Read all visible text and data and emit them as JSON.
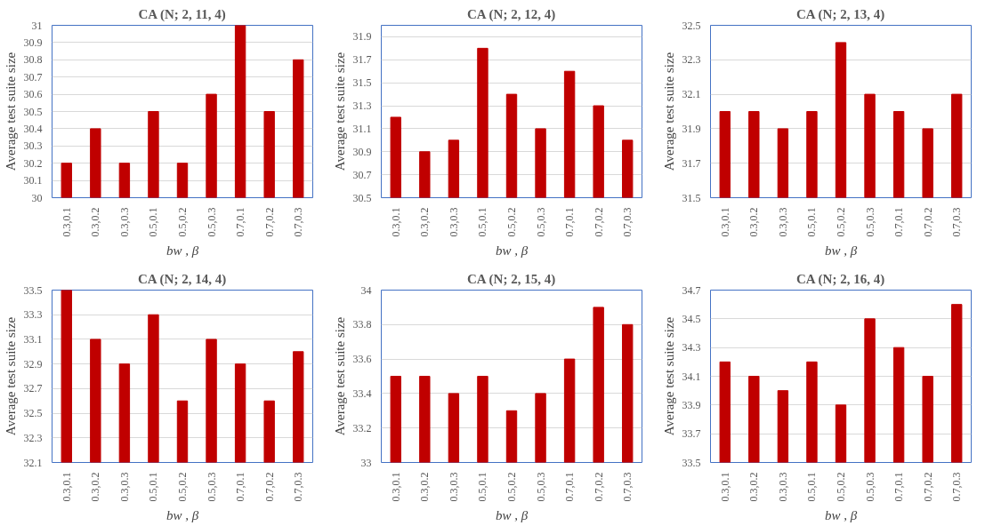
{
  "chart_data": [
    {
      "type": "bar",
      "title": "CA (N; 2, 11, 4)",
      "xlabel": "bw , β",
      "ylabel": "Average test suite size",
      "categories": [
        "0.3,0.1",
        "0.3,0.2",
        "0.3,0.3",
        "0.5,0.1",
        "0.5,0.2",
        "0.5,0.3",
        "0.7,0.1",
        "0.7,0.2",
        "0.7,0.3"
      ],
      "values": [
        30.2,
        30.4,
        30.2,
        30.5,
        30.2,
        30.6,
        31.0,
        30.5,
        30.8
      ],
      "color": "#c00000",
      "ylim": [
        30,
        31
      ],
      "yticks": [
        30,
        30.1,
        30.2,
        30.3,
        30.4,
        30.5,
        30.6,
        30.7,
        30.8,
        30.9,
        31
      ],
      "grid": "y"
    },
    {
      "type": "bar",
      "title": "CA (N; 2, 12, 4)",
      "xlabel": "bw , β",
      "ylabel": "Average test suite size",
      "categories": [
        "0.3,0.1",
        "0.3,0.2",
        "0.3,0.3",
        "0.5,0.1",
        "0.5,0.2",
        "0.5,0.3",
        "0.7,0.1",
        "0.7,0.2",
        "0.7,0.3"
      ],
      "values": [
        31.2,
        30.9,
        31.0,
        31.8,
        31.4,
        31.1,
        31.6,
        31.3,
        31.0
      ],
      "color": "#c00000",
      "ylim": [
        30.5,
        32.0
      ],
      "yticks": [
        30.5,
        30.7,
        30.9,
        31.1,
        31.3,
        31.5,
        31.7,
        31.9
      ],
      "grid": "y"
    },
    {
      "type": "bar",
      "title": "CA (N; 2, 13, 4)",
      "xlabel": "bw , β",
      "ylabel": "Average test suite size",
      "categories": [
        "0.3,0.1",
        "0.3,0.2",
        "0.3,0.3",
        "0.5,0.1",
        "0.5,0.2",
        "0.5,0.3",
        "0.7,0.1",
        "0.7,0.2",
        "0.7,0.3"
      ],
      "values": [
        32.0,
        32.0,
        31.9,
        32.0,
        32.4,
        32.1,
        32.0,
        31.9,
        32.1
      ],
      "color": "#c00000",
      "ylim": [
        31.5,
        32.5
      ],
      "yticks": [
        31.5,
        31.7,
        31.9,
        32.1,
        32.3,
        32.5
      ],
      "grid": "y"
    },
    {
      "type": "bar",
      "title": "CA (N; 2, 14, 4)",
      "xlabel": "bw , β",
      "ylabel": "Average test suite size",
      "categories": [
        "0.3,0.1",
        "0.3,0.2",
        "0.3,0.3",
        "0.5,0.1",
        "0.5,0.2",
        "0.5,0.3",
        "0.7,0.1",
        "0.7,0.2",
        "0.7,0.3"
      ],
      "values": [
        33.5,
        33.1,
        32.9,
        33.3,
        32.6,
        33.1,
        32.9,
        32.6,
        33.0
      ],
      "color": "#c00000",
      "ylim": [
        32.1,
        33.5
      ],
      "yticks": [
        32.1,
        32.3,
        32.5,
        32.7,
        32.9,
        33.1,
        33.3,
        33.5
      ],
      "grid": "y"
    },
    {
      "type": "bar",
      "title": "CA (N; 2, 15, 4)",
      "xlabel": "bw , β",
      "ylabel": "Average test suite size",
      "categories": [
        "0.3,0.1",
        "0.3,0.2",
        "0.3,0.3",
        "0.5,0.1",
        "0.5,0.2",
        "0.5,0.3",
        "0.7,0.1",
        "0.7,0.2",
        "0.7,0.3"
      ],
      "values": [
        33.5,
        33.5,
        33.4,
        33.5,
        33.3,
        33.4,
        33.6,
        33.9,
        33.8
      ],
      "color": "#c00000",
      "ylim": [
        33,
        34
      ],
      "yticks": [
        33,
        33.2,
        33.4,
        33.6,
        33.8,
        34
      ],
      "grid": "y"
    },
    {
      "type": "bar",
      "title": "CA (N; 2, 16, 4)",
      "xlabel": "bw , β",
      "ylabel": "Average test suite size",
      "categories": [
        "0.3,0.1",
        "0.3,0.2",
        "0.3,0.3",
        "0.5,0.1",
        "0.5,0.2",
        "0.5,0.3",
        "0.7,0.1",
        "0.7,0.2",
        "0.7,0.3"
      ],
      "values": [
        34.2,
        34.1,
        34.0,
        34.2,
        33.9,
        34.5,
        34.3,
        34.1,
        34.6
      ],
      "color": "#c00000",
      "ylim": [
        33.5,
        34.7
      ],
      "yticks": [
        33.5,
        33.7,
        33.9,
        34.1,
        34.3,
        34.5,
        34.7
      ],
      "grid": "y"
    }
  ]
}
